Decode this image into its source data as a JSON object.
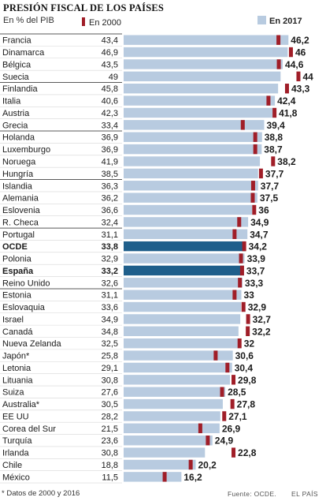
{
  "header": {
    "title": "PRESIÓN FISCAL DE LOS PAÍSES",
    "subtitle": "En % del PIB"
  },
  "footer": {
    "footnote": "* Datos de 2000 y 2016",
    "source": "Fuente: OCDE.",
    "credit": "EL PAÍS"
  },
  "colors": {
    "bar_2017": "#b8cbe0",
    "bar_highlight": "#1f5f8b",
    "marker_2000": "#a01e28",
    "separator": "#5a5a5a",
    "row_divider": "#d6d6d6"
  },
  "chart_data": {
    "type": "bar",
    "orientation": "horizontal",
    "legend": {
      "series_2000": "En 2000",
      "series_2017": "En 2017"
    },
    "categories": [
      "Francia",
      "Dinamarca",
      "Bélgica",
      "Suecia",
      "Finlandia",
      "Italia",
      "Austria",
      "Grecia",
      "Holanda",
      "Luxemburgo",
      "Noruega",
      "Hungría",
      "Islandia",
      "Alemania",
      "Eslovenia",
      "R. Checa",
      "Portugal",
      "OCDE",
      "Polonia",
      "España",
      "Reino Unido",
      "Estonia",
      "Eslovaquia",
      "Israel",
      "Canadá",
      "Nueva Zelanda",
      "Japón*",
      "Letonia",
      "Lituania",
      "Suiza",
      "Australia*",
      "EE UU",
      "Corea del Sur",
      "Turquía",
      "Irlanda",
      "Chile",
      "México"
    ],
    "values_2000": [
      43.4,
      46.9,
      43.5,
      49,
      45.8,
      40.6,
      42.3,
      33.4,
      36.9,
      36.9,
      41.9,
      38.5,
      36.3,
      36.2,
      36.6,
      32.4,
      31.1,
      33.8,
      32.9,
      33.2,
      32.6,
      31.1,
      33.6,
      34.9,
      34.8,
      32.5,
      25.8,
      29.1,
      30.8,
      27.6,
      30.5,
      28.2,
      21.5,
      23.6,
      30.8,
      18.8,
      11.5
    ],
    "values_2000_labels": [
      "43,4",
      "46,9",
      "43,5",
      "49",
      "45,8",
      "40,6",
      "42,3",
      "33,4",
      "36,9",
      "36,9",
      "41,9",
      "38,5",
      "36,3",
      "36,2",
      "36,6",
      "32,4",
      "31,1",
      "33,8",
      "32,9",
      "33,2",
      "32,6",
      "31,1",
      "33,6",
      "34,9",
      "34,8",
      "32,5",
      "25,8",
      "29,1",
      "30,8",
      "27,6",
      "30,5",
      "28,2",
      "21,5",
      "23,6",
      "30,8",
      "18,8",
      "11,5"
    ],
    "values_2017": [
      46.2,
      46,
      44.6,
      44,
      43.3,
      42.4,
      41.8,
      39.4,
      38.8,
      38.7,
      38.2,
      37.7,
      37.7,
      37.5,
      36,
      34.9,
      34.7,
      34.2,
      33.9,
      33.7,
      33.3,
      33,
      32.9,
      32.7,
      32.2,
      32,
      30.6,
      30.4,
      29.8,
      28.5,
      27.8,
      27.1,
      26.9,
      24.9,
      22.8,
      20.2,
      16.2
    ],
    "values_2017_labels": [
      "46,2",
      "46",
      "44,6",
      "44",
      "43,3",
      "42,4",
      "41,8",
      "39,4",
      "38,8",
      "38,7",
      "38,2",
      "37,7",
      "37,7",
      "37,5",
      "36",
      "34,9",
      "34,7",
      "34,2",
      "33,9",
      "33,7",
      "33,3",
      "33",
      "32,9",
      "32,7",
      "32,2",
      "32",
      "30,6",
      "30,4",
      "29,8",
      "28,5",
      "27,8",
      "27,1",
      "26,9",
      "24,9",
      "22,8",
      "20,2",
      "16,2"
    ],
    "highlighted": [
      "OCDE",
      "España"
    ],
    "group_breaks_after": [
      "Suecia",
      "Grecia",
      "Hungría",
      "R. Checa",
      "Reino Unido"
    ],
    "grid": false
  }
}
